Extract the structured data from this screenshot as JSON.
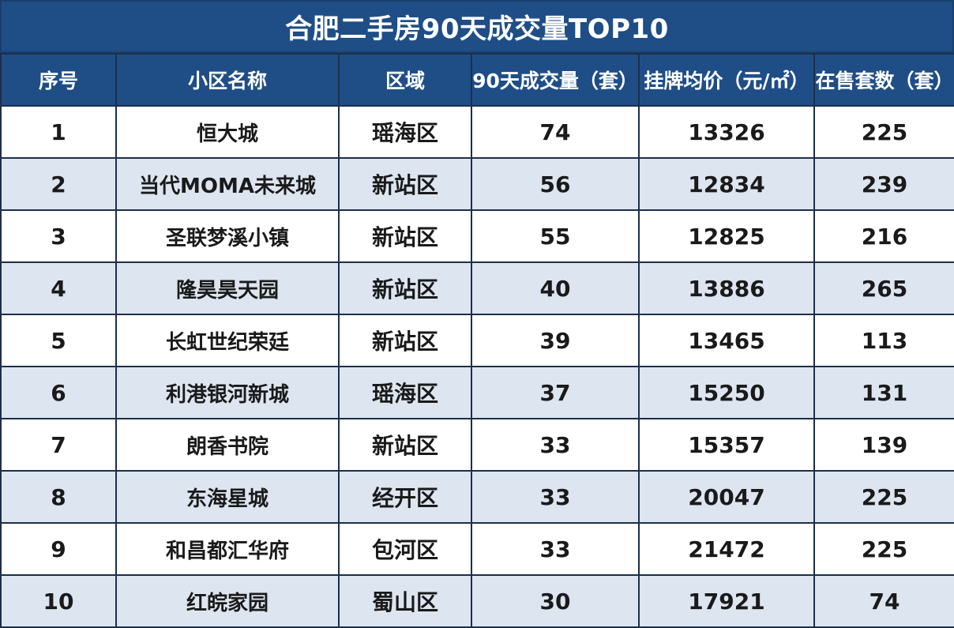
{
  "title": "合肥二手房90天成交量TOP10",
  "colors": {
    "header_bg": "#1f4e87",
    "header_text": "#ffffff",
    "row_alt_bg": "#dde5f0",
    "row_bg": "#ffffff",
    "border": "#1c2f4a"
  },
  "columns": [
    "序号",
    "小区名称",
    "区域",
    "90天成交量（套）",
    "挂牌均价（元/㎡）",
    "在售套数（套）"
  ],
  "rows": [
    {
      "rank": "1",
      "name": "恒大城",
      "district": "瑶海区",
      "volume": "74",
      "price": "13326",
      "listings": "225"
    },
    {
      "rank": "2",
      "name": "当代MOMA未来城",
      "district": "新站区",
      "volume": "56",
      "price": "12834",
      "listings": "239"
    },
    {
      "rank": "3",
      "name": "圣联梦溪小镇",
      "district": "新站区",
      "volume": "55",
      "price": "12825",
      "listings": "216"
    },
    {
      "rank": "4",
      "name": "隆昊昊天园",
      "district": "新站区",
      "volume": "40",
      "price": "13886",
      "listings": "265"
    },
    {
      "rank": "5",
      "name": "长虹世纪荣廷",
      "district": "新站区",
      "volume": "39",
      "price": "13465",
      "listings": "113"
    },
    {
      "rank": "6",
      "name": "利港银河新城",
      "district": "瑶海区",
      "volume": "37",
      "price": "15250",
      "listings": "131"
    },
    {
      "rank": "7",
      "name": "朗香书院",
      "district": "新站区",
      "volume": "33",
      "price": "15357",
      "listings": "139"
    },
    {
      "rank": "8",
      "name": "东海星城",
      "district": "经开区",
      "volume": "33",
      "price": "20047",
      "listings": "225"
    },
    {
      "rank": "9",
      "name": "和昌都汇华府",
      "district": "包河区",
      "volume": "33",
      "price": "21472",
      "listings": "225"
    },
    {
      "rank": "10",
      "name": "红皖家园",
      "district": "蜀山区",
      "volume": "30",
      "price": "17921",
      "listings": "74"
    }
  ]
}
